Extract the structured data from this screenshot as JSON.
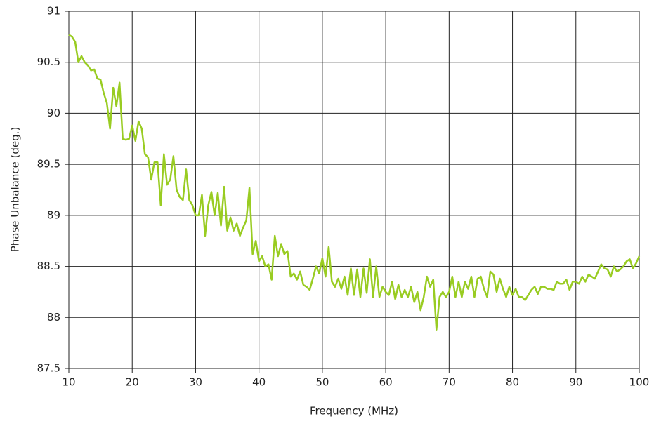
{
  "chart_data": {
    "type": "line",
    "x_label": "Frequency (MHz)",
    "y_label": "Phase Unbalance (deg.)",
    "xlim": [
      10,
      100
    ],
    "xticks": [
      10,
      20,
      30,
      40,
      50,
      60,
      70,
      80,
      90,
      100
    ],
    "ylim": [
      87.5,
      91
    ],
    "yticks": [
      87.5,
      88,
      88.5,
      89,
      89.5,
      90,
      90.5,
      91
    ],
    "grid": true,
    "x": [
      10,
      10.5,
      11,
      11.5,
      12,
      12.5,
      13,
      13.5,
      14,
      14.5,
      15,
      15.5,
      16,
      16.5,
      17,
      17.5,
      18,
      18.5,
      19,
      19.5,
      20,
      20.5,
      21,
      21.5,
      22,
      22.5,
      23,
      23.5,
      24,
      24.5,
      25,
      25.5,
      26,
      26.5,
      27,
      27.5,
      28,
      28.5,
      29,
      29.5,
      30,
      30.5,
      31,
      31.5,
      32,
      32.5,
      33,
      33.5,
      34,
      34.5,
      35,
      35.5,
      36,
      36.5,
      37,
      37.5,
      38,
      38.5,
      39,
      39.5,
      40,
      40.5,
      41,
      41.5,
      42,
      42.5,
      43,
      43.5,
      44,
      44.5,
      45,
      45.5,
      46,
      46.5,
      47,
      47.5,
      48,
      48.5,
      49,
      49.5,
      50,
      50.5,
      51,
      51.5,
      52,
      52.5,
      53,
      53.5,
      54,
      54.5,
      55,
      55.5,
      56,
      56.5,
      57,
      57.5,
      58,
      58.5,
      59,
      59.5,
      60,
      60.5,
      61,
      61.5,
      62,
      62.5,
      63,
      63.5,
      64,
      64.5,
      65,
      65.5,
      66,
      66.5,
      67,
      67.5,
      68,
      68.5,
      69,
      69.5,
      70,
      70.5,
      71,
      71.5,
      72,
      72.5,
      73,
      73.5,
      74,
      74.5,
      75,
      75.5,
      76,
      76.5,
      77,
      77.5,
      78,
      78.5,
      79,
      79.5,
      80,
      80.5,
      81,
      81.5,
      82,
      82.5,
      83,
      83.5,
      84,
      84.5,
      85,
      85.5,
      86,
      86.5,
      87,
      87.5,
      88,
      88.5,
      89,
      89.5,
      90,
      90.5,
      91,
      91.5,
      92,
      92.5,
      93,
      93.5,
      94,
      94.5,
      95,
      95.5,
      96,
      96.5,
      97,
      97.5,
      98,
      98.5,
      99,
      99.5,
      100
    ],
    "series": [
      {
        "color": "#99cc22",
        "values": [
          90.77,
          90.75,
          90.7,
          90.5,
          90.56,
          90.5,
          90.47,
          90.42,
          90.43,
          90.34,
          90.33,
          90.2,
          90.1,
          89.85,
          90.25,
          90.07,
          90.3,
          89.75,
          89.74,
          89.75,
          89.88,
          89.73,
          89.92,
          89.85,
          89.6,
          89.57,
          89.35,
          89.52,
          89.52,
          89.1,
          89.6,
          89.3,
          89.35,
          89.58,
          89.25,
          89.18,
          89.15,
          89.45,
          89.15,
          89.1,
          89.0,
          89.0,
          89.2,
          88.8,
          89.1,
          89.23,
          89.0,
          89.22,
          88.9,
          89.28,
          88.85,
          88.98,
          88.85,
          88.92,
          88.8,
          88.88,
          88.95,
          89.27,
          88.62,
          88.75,
          88.55,
          88.6,
          88.5,
          88.52,
          88.37,
          88.8,
          88.6,
          88.72,
          88.62,
          88.65,
          88.4,
          88.43,
          88.37,
          88.45,
          88.32,
          88.3,
          88.27,
          88.38,
          88.5,
          88.43,
          88.58,
          88.4,
          88.69,
          88.35,
          88.3,
          88.38,
          88.28,
          88.4,
          88.22,
          88.48,
          88.22,
          88.47,
          88.2,
          88.48,
          88.24,
          88.57,
          88.2,
          88.5,
          88.2,
          88.3,
          88.25,
          88.22,
          88.35,
          88.18,
          88.32,
          88.2,
          88.27,
          88.2,
          88.3,
          88.15,
          88.25,
          88.07,
          88.2,
          88.4,
          88.3,
          88.37,
          87.88,
          88.2,
          88.25,
          88.2,
          88.25,
          88.4,
          88.2,
          88.35,
          88.2,
          88.35,
          88.28,
          88.4,
          88.2,
          88.38,
          88.4,
          88.28,
          88.2,
          88.45,
          88.42,
          88.25,
          88.38,
          88.28,
          88.2,
          88.3,
          88.22,
          88.28,
          88.2,
          88.2,
          88.17,
          88.22,
          88.27,
          88.3,
          88.23,
          88.3,
          88.3,
          88.28,
          88.28,
          88.27,
          88.35,
          88.33,
          88.33,
          88.37,
          88.27,
          88.35,
          88.35,
          88.33,
          88.4,
          88.35,
          88.42,
          88.4,
          88.38,
          88.45,
          88.52,
          88.48,
          88.47,
          88.4,
          88.5,
          88.45,
          88.47,
          88.5,
          88.55,
          88.57,
          88.48,
          88.53,
          88.6
        ]
      }
    ]
  }
}
